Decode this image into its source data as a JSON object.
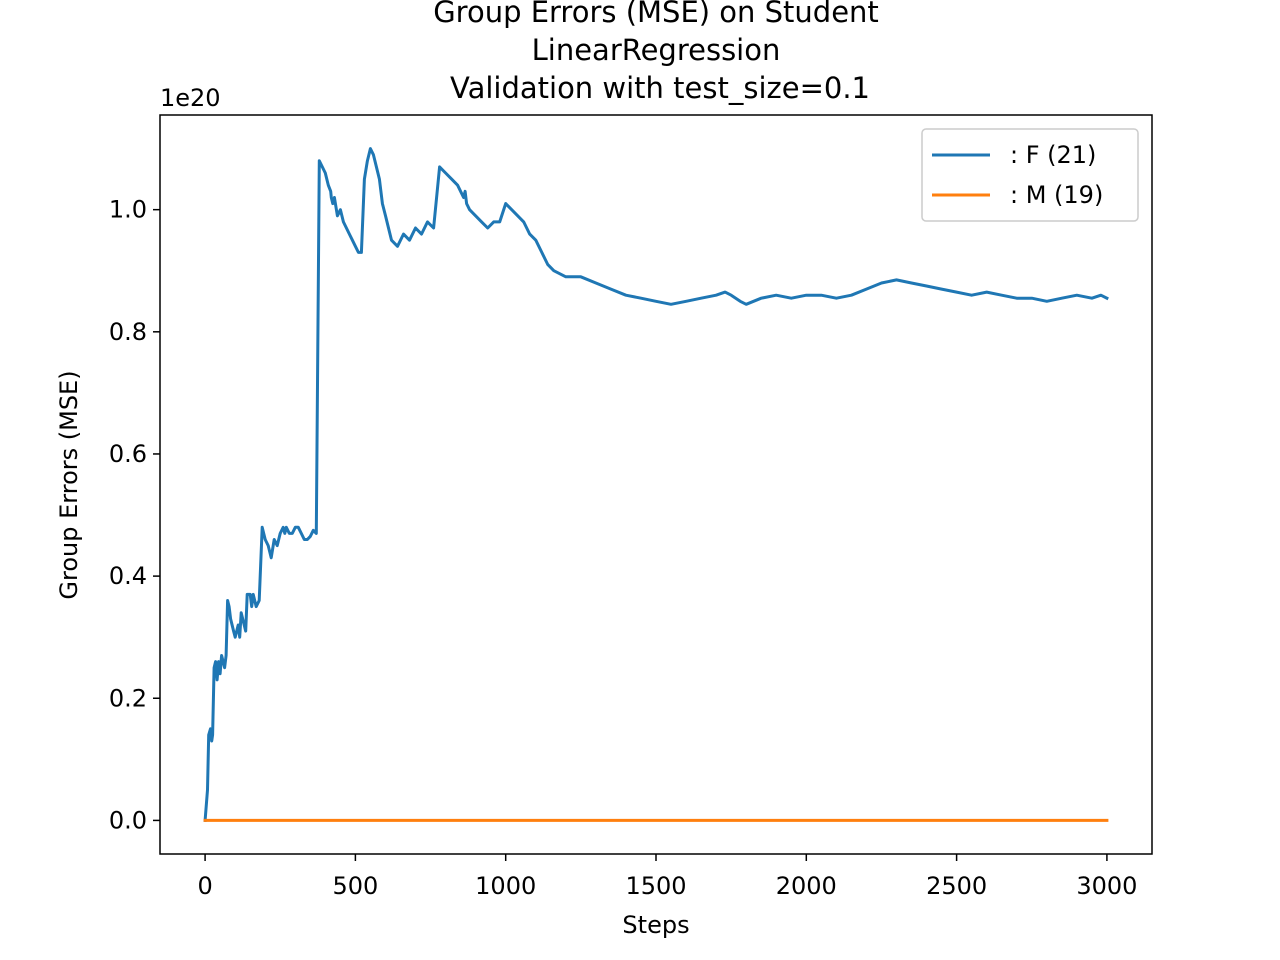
{
  "chart_data": {
    "type": "line",
    "title_lines": [
      "Group Errors (MSE) on Student",
      "LinearRegression",
      "Validation with test_size=0.1"
    ],
    "xlabel": "Steps",
    "ylabel": "Group Errors (MSE)",
    "y_offset_label": "1e20",
    "xlim": [
      -150,
      3150
    ],
    "ylim": [
      -0.055,
      1.155
    ],
    "x_ticks": [
      0,
      500,
      1000,
      1500,
      2000,
      2500,
      3000
    ],
    "x_tick_labels": [
      "0",
      "500",
      "1000",
      "1500",
      "2000",
      "2500",
      "3000"
    ],
    "y_ticks": [
      0.0,
      0.2,
      0.4,
      0.6,
      0.8,
      1.0
    ],
    "y_tick_labels": [
      "0.0",
      "0.2",
      "0.4",
      "0.6",
      "0.8",
      "1.0"
    ],
    "grid": false,
    "legend_position": "top-right",
    "series": [
      {
        "name": ": F  (21)",
        "color": "#1f77b4",
        "x": [
          0,
          8,
          12,
          18,
          22,
          25,
          30,
          35,
          40,
          45,
          50,
          55,
          60,
          65,
          70,
          75,
          80,
          85,
          90,
          95,
          100,
          110,
          115,
          120,
          130,
          135,
          140,
          150,
          155,
          160,
          170,
          180,
          190,
          200,
          210,
          215,
          220,
          230,
          240,
          250,
          260,
          265,
          270,
          280,
          290,
          300,
          310,
          320,
          330,
          340,
          350,
          360,
          370,
          380,
          390,
          400,
          410,
          418,
          420,
          425,
          430,
          440,
          450,
          460,
          470,
          480,
          490,
          500,
          510,
          520,
          530,
          540,
          550,
          560,
          570,
          580,
          585,
          590,
          600,
          610,
          620,
          640,
          660,
          680,
          700,
          720,
          740,
          760,
          780,
          800,
          820,
          840,
          860,
          865,
          870,
          880,
          900,
          920,
          940,
          960,
          980,
          1000,
          1020,
          1040,
          1060,
          1070,
          1080,
          1100,
          1120,
          1140,
          1160,
          1200,
          1250,
          1300,
          1350,
          1400,
          1450,
          1500,
          1550,
          1600,
          1650,
          1700,
          1730,
          1750,
          1780,
          1800,
          1850,
          1900,
          1950,
          2000,
          2050,
          2100,
          2150,
          2200,
          2250,
          2300,
          2350,
          2400,
          2450,
          2500,
          2550,
          2600,
          2650,
          2700,
          2750,
          2800,
          2850,
          2900,
          2950,
          2980,
          3000
        ],
        "values": [
          0.0,
          0.05,
          0.14,
          0.15,
          0.13,
          0.14,
          0.25,
          0.26,
          0.23,
          0.26,
          0.24,
          0.27,
          0.26,
          0.25,
          0.27,
          0.36,
          0.35,
          0.33,
          0.32,
          0.31,
          0.3,
          0.32,
          0.3,
          0.34,
          0.32,
          0.31,
          0.37,
          0.37,
          0.35,
          0.37,
          0.35,
          0.36,
          0.48,
          0.46,
          0.45,
          0.44,
          0.43,
          0.46,
          0.45,
          0.47,
          0.48,
          0.47,
          0.48,
          0.47,
          0.47,
          0.48,
          0.48,
          0.47,
          0.46,
          0.46,
          0.465,
          0.475,
          0.47,
          1.08,
          1.07,
          1.06,
          1.04,
          1.03,
          1.02,
          1.01,
          1.02,
          0.99,
          1.0,
          0.98,
          0.97,
          0.96,
          0.95,
          0.94,
          0.93,
          0.93,
          1.05,
          1.08,
          1.1,
          1.09,
          1.07,
          1.05,
          1.03,
          1.01,
          0.99,
          0.97,
          0.95,
          0.94,
          0.96,
          0.95,
          0.97,
          0.96,
          0.98,
          0.97,
          1.07,
          1.06,
          1.05,
          1.04,
          1.02,
          1.03,
          1.01,
          1.0,
          0.99,
          0.98,
          0.97,
          0.98,
          0.98,
          1.01,
          1.0,
          0.99,
          0.98,
          0.97,
          0.96,
          0.95,
          0.93,
          0.91,
          0.9,
          0.89,
          0.89,
          0.88,
          0.87,
          0.86,
          0.855,
          0.85,
          0.845,
          0.85,
          0.855,
          0.86,
          0.865,
          0.86,
          0.85,
          0.845,
          0.855,
          0.86,
          0.855,
          0.86,
          0.86,
          0.855,
          0.86,
          0.87,
          0.88,
          0.885,
          0.88,
          0.875,
          0.87,
          0.865,
          0.86,
          0.865,
          0.86,
          0.855,
          0.855,
          0.85,
          0.855,
          0.86,
          0.855,
          0.86,
          0.855
        ]
      },
      {
        "name": ": M  (19)",
        "color": "#ff7f0e",
        "x": [
          0,
          3000
        ],
        "values": [
          0.0,
          0.0
        ]
      }
    ]
  }
}
